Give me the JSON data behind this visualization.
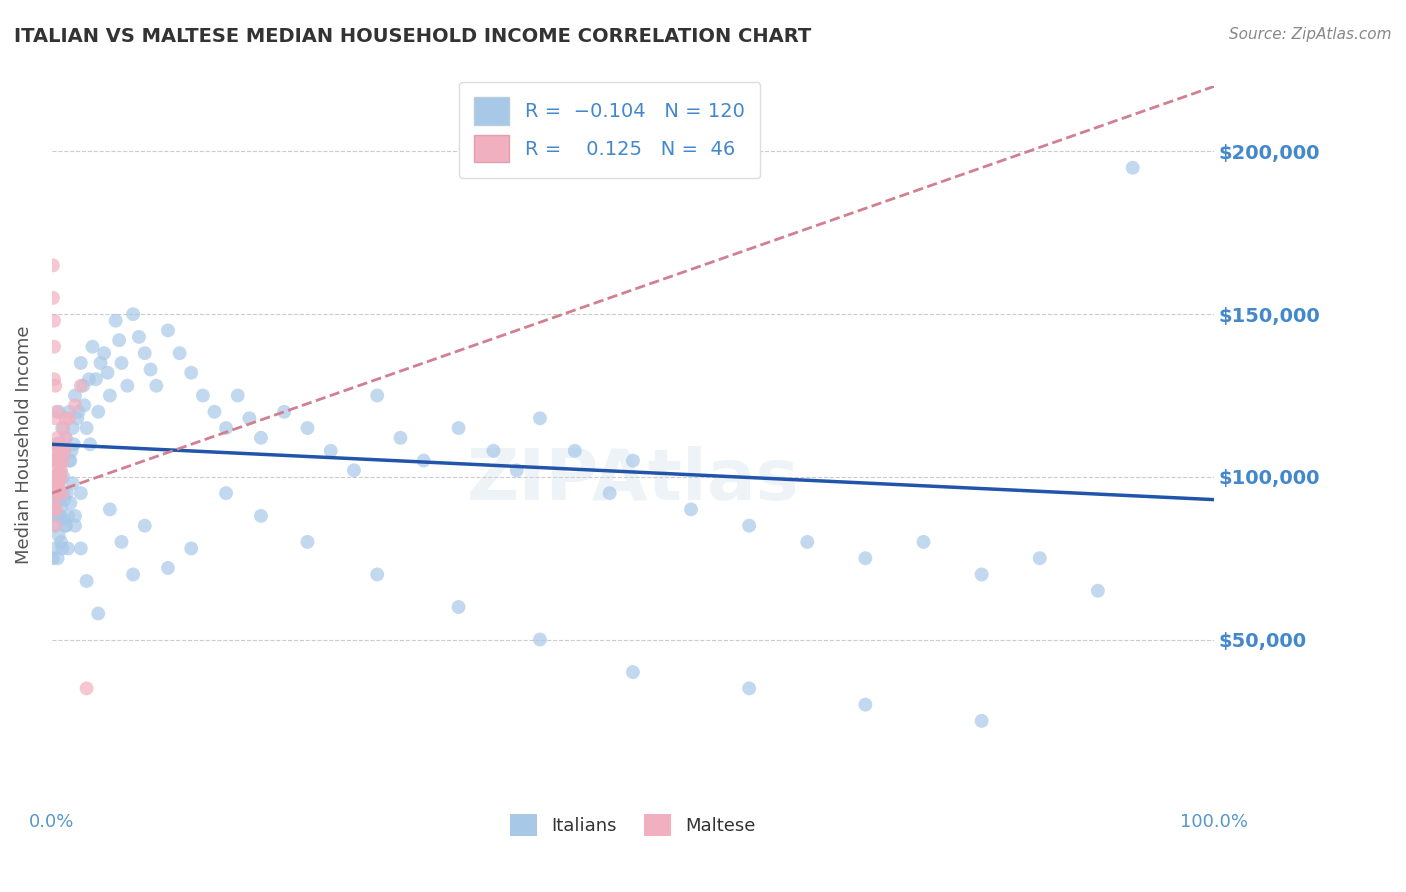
{
  "title": "ITALIAN VS MALTESE MEDIAN HOUSEHOLD INCOME CORRELATION CHART",
  "source": "Source: ZipAtlas.com",
  "ylabel": "Median Household Income",
  "ytick_values": [
    50000,
    100000,
    150000,
    200000
  ],
  "watermark": "ZIPAtlas",
  "italian_scatter": {
    "x": [
      0.001,
      0.002,
      0.002,
      0.003,
      0.003,
      0.004,
      0.004,
      0.005,
      0.005,
      0.005,
      0.006,
      0.006,
      0.007,
      0.007,
      0.008,
      0.008,
      0.009,
      0.009,
      0.01,
      0.01,
      0.011,
      0.011,
      0.012,
      0.012,
      0.013,
      0.014,
      0.015,
      0.015,
      0.016,
      0.017,
      0.018,
      0.019,
      0.02,
      0.02,
      0.022,
      0.023,
      0.025,
      0.025,
      0.027,
      0.028,
      0.03,
      0.032,
      0.033,
      0.035,
      0.038,
      0.04,
      0.042,
      0.045,
      0.048,
      0.05,
      0.055,
      0.058,
      0.06,
      0.065,
      0.07,
      0.075,
      0.08,
      0.085,
      0.09,
      0.1,
      0.11,
      0.12,
      0.13,
      0.14,
      0.15,
      0.16,
      0.17,
      0.18,
      0.2,
      0.22,
      0.24,
      0.26,
      0.28,
      0.3,
      0.32,
      0.35,
      0.38,
      0.4,
      0.42,
      0.45,
      0.48,
      0.5,
      0.55,
      0.6,
      0.65,
      0.7,
      0.75,
      0.8,
      0.85,
      0.9,
      0.003,
      0.004,
      0.006,
      0.008,
      0.01,
      0.012,
      0.014,
      0.016,
      0.018,
      0.02,
      0.025,
      0.03,
      0.04,
      0.05,
      0.06,
      0.07,
      0.08,
      0.1,
      0.12,
      0.15,
      0.18,
      0.22,
      0.28,
      0.35,
      0.42,
      0.5,
      0.6,
      0.7,
      0.8,
      0.93
    ],
    "y": [
      75000,
      85000,
      95000,
      78000,
      105000,
      88000,
      92000,
      110000,
      75000,
      98000,
      82000,
      120000,
      88000,
      95000,
      105000,
      91000,
      115000,
      78000,
      100000,
      87000,
      93000,
      108000,
      85000,
      112000,
      95000,
      88000,
      120000,
      105000,
      92000,
      108000,
      115000,
      110000,
      125000,
      85000,
      118000,
      120000,
      135000,
      95000,
      128000,
      122000,
      115000,
      130000,
      110000,
      140000,
      130000,
      120000,
      135000,
      138000,
      132000,
      125000,
      148000,
      142000,
      135000,
      128000,
      150000,
      143000,
      138000,
      133000,
      128000,
      145000,
      138000,
      132000,
      125000,
      120000,
      115000,
      125000,
      118000,
      112000,
      120000,
      115000,
      108000,
      102000,
      125000,
      112000,
      105000,
      115000,
      108000,
      102000,
      118000,
      108000,
      95000,
      105000,
      90000,
      85000,
      80000,
      75000,
      80000,
      70000,
      75000,
      65000,
      100000,
      92000,
      88000,
      80000,
      95000,
      85000,
      78000,
      105000,
      98000,
      88000,
      78000,
      68000,
      58000,
      90000,
      80000,
      70000,
      85000,
      72000,
      78000,
      95000,
      88000,
      80000,
      70000,
      60000,
      50000,
      40000,
      35000,
      30000,
      25000,
      195000
    ]
  },
  "maltese_scatter": {
    "x": [
      0.001,
      0.001,
      0.002,
      0.002,
      0.002,
      0.003,
      0.003,
      0.003,
      0.004,
      0.004,
      0.004,
      0.005,
      0.005,
      0.006,
      0.006,
      0.007,
      0.007,
      0.008,
      0.008,
      0.009,
      0.009,
      0.01,
      0.011,
      0.012,
      0.001,
      0.001,
      0.001,
      0.002,
      0.002,
      0.003,
      0.003,
      0.003,
      0.004,
      0.004,
      0.005,
      0.005,
      0.006,
      0.007,
      0.008,
      0.009,
      0.01,
      0.012,
      0.015,
      0.02,
      0.025,
      0.03
    ],
    "y": [
      165000,
      155000,
      148000,
      140000,
      130000,
      128000,
      118000,
      108000,
      120000,
      110000,
      98000,
      112000,
      102000,
      108000,
      98000,
      110000,
      102000,
      108000,
      100000,
      105000,
      95000,
      115000,
      108000,
      118000,
      105000,
      98000,
      90000,
      100000,
      92000,
      105000,
      95000,
      85000,
      110000,
      90000,
      105000,
      95000,
      98000,
      100000,
      102000,
      105000,
      108000,
      112000,
      118000,
      122000,
      128000,
      35000
    ]
  },
  "italian_trend_x": [
    0.0,
    1.0
  ],
  "italian_trend_y": [
    110000,
    93000
  ],
  "maltese_trend_x": [
    0.0,
    1.0
  ],
  "maltese_trend_y": [
    95000,
    220000
  ],
  "italian_trend_color": "#2255aa",
  "maltese_trend_color": "#d08090",
  "scatter_color_italian": "#a8c8e8",
  "scatter_color_maltese": "#f0b0c0",
  "scatter_size": 100,
  "xlim": [
    0.0,
    1.0
  ],
  "ylim": [
    0,
    220000
  ],
  "background_color": "#ffffff",
  "grid_color": "#cccccc",
  "title_color": "#333333",
  "axis_color": "#5599cc",
  "ytick_color": "#4488cc"
}
